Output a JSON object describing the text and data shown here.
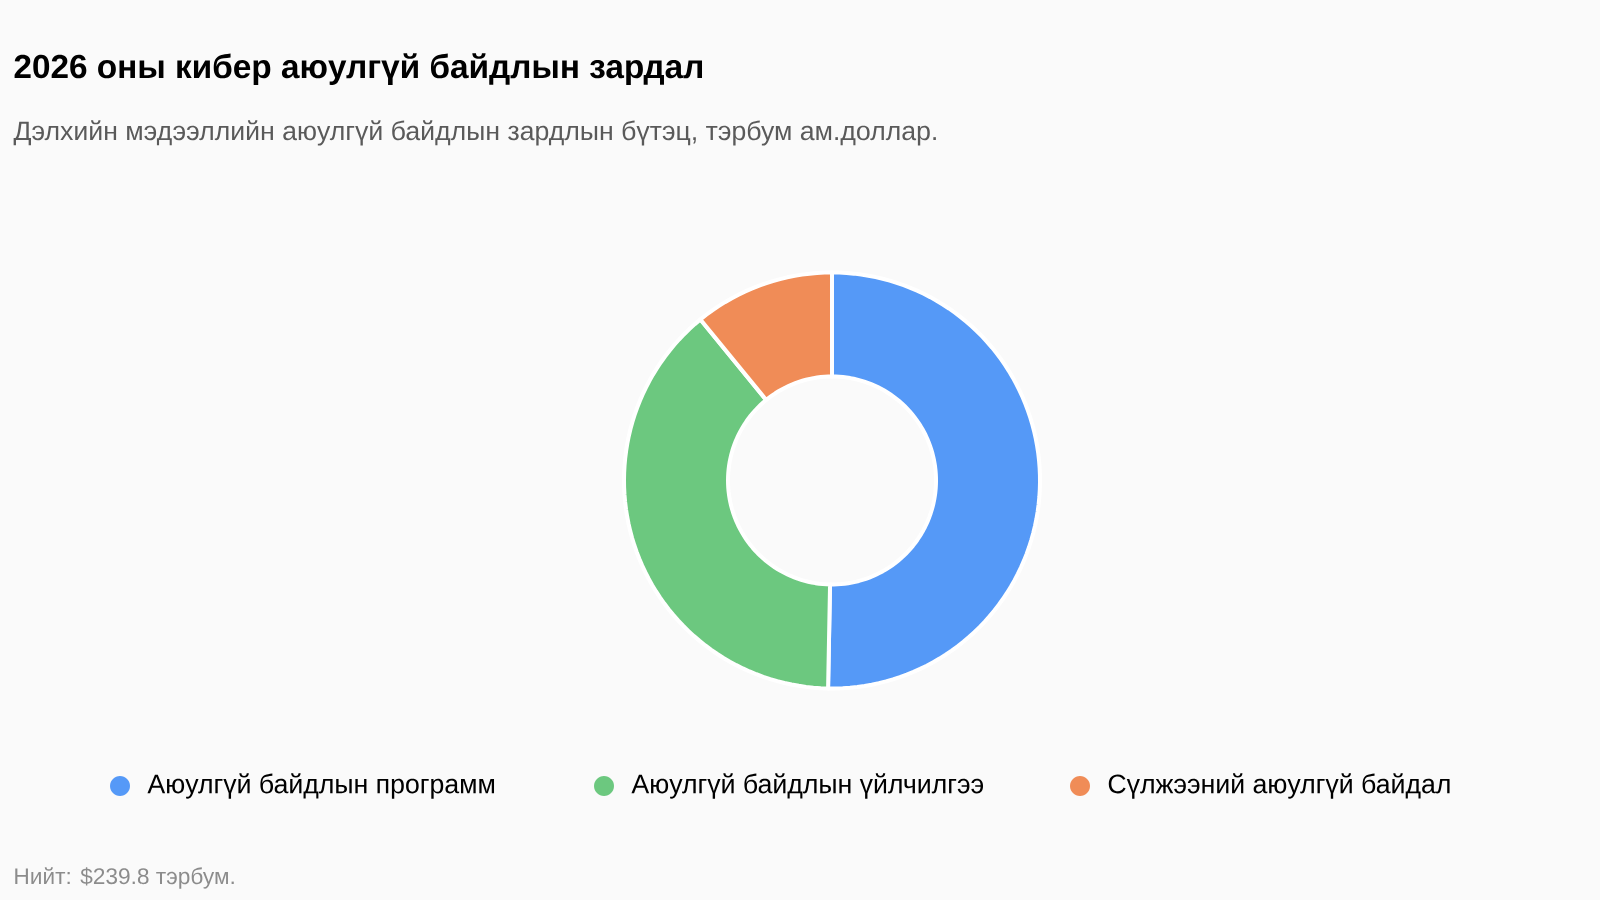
{
  "chart_data": {
    "type": "donut",
    "title": "2026 оны кибер аюулгүй байдлын зардал",
    "subtitle": "Дэлхийн мэдээллийн аюулгүй байдлын зардлын бүтэц, тэрбум ам.доллар.",
    "categories": [
      "Аюулгүй байдлын программ",
      "Аюулгүй байдлын үйлчилгээ",
      "Сүлжээний аюулгүй байдал"
    ],
    "values": [
      50.3,
      38.8,
      10.9
    ],
    "colors": [
      "#5599f7",
      "#6cc87f",
      "#f08c57"
    ],
    "legend": "bottom",
    "annotations": [
      "Нийт: $239.8 тэрбум."
    ]
  }
}
